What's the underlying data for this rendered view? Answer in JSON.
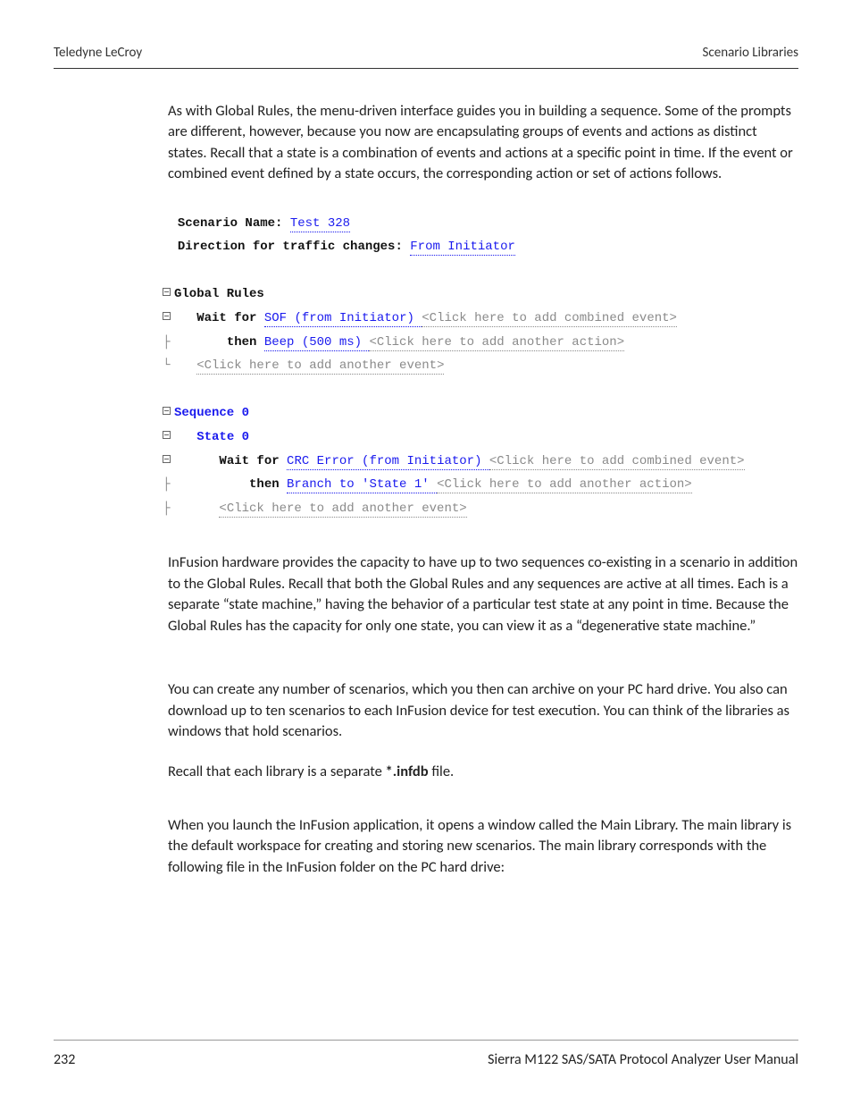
{
  "header": {
    "left": "Teledyne LeCroy",
    "right": "Scenario Libraries"
  },
  "para1": "As with Global Rules, the menu-driven interface guides you in building a sequence. Some of the prompts are different, however, because you now are encapsulating groups of events and actions as distinct states. Recall that a state is a combination of events and actions at a specific point in time. If the event or combined event defined by a state occurs, the corresponding action or set of actions follows.",
  "codeblock": {
    "scn_name_lbl": "Scenario Name: ",
    "scn_name_val": "Test 328",
    "dir_lbl": "Direction for traffic changes: ",
    "dir_val": "From Initiator",
    "global_rules": "Global Rules",
    "wait_for": "Wait for ",
    "sof": "SOF (from Initiator) ",
    "add_combined": "<Click here to add combined event>",
    "then": "then ",
    "beep": "Beep (500 ms) ",
    "add_action": "<Click here to add another action>",
    "add_event": "<Click here to add another event>",
    "seq0": "Sequence 0",
    "state0": "State 0",
    "crc": "CRC Error (from Initiator) ",
    "branch": "Branch to 'State 1' "
  },
  "para2": "InFusion hardware provides the capacity to have up to two sequences co-existing in a scenario in addition to the Global Rules. Recall that both the Global Rules and any sequences are active at all times. Each is a separate “state machine,” having the behavior of a particular test state at any point in time. Because the Global Rules has the capacity for only one state, you can view it as a “degenerative state machine.”",
  "para3": "You can create any number of scenarios, which you then can archive on your PC hard drive. You also can download up to ten scenarios to each InFusion device for test execution. You can think of the libraries as windows that hold scenarios.",
  "para4_a": "Recall that each library is a separate ",
  "para4_b": "*.infdb",
  "para4_c": " file.",
  "para5": "When you launch the InFusion application, it opens a window called the Main Library. The main library is the default workspace for creating and storing new scenarios. The main library corresponds with the following file in the InFusion folder on the PC hard drive:",
  "footer": {
    "page": "232",
    "title": "Sierra M122 SAS/SATA Protocol Analyzer User Manual"
  }
}
